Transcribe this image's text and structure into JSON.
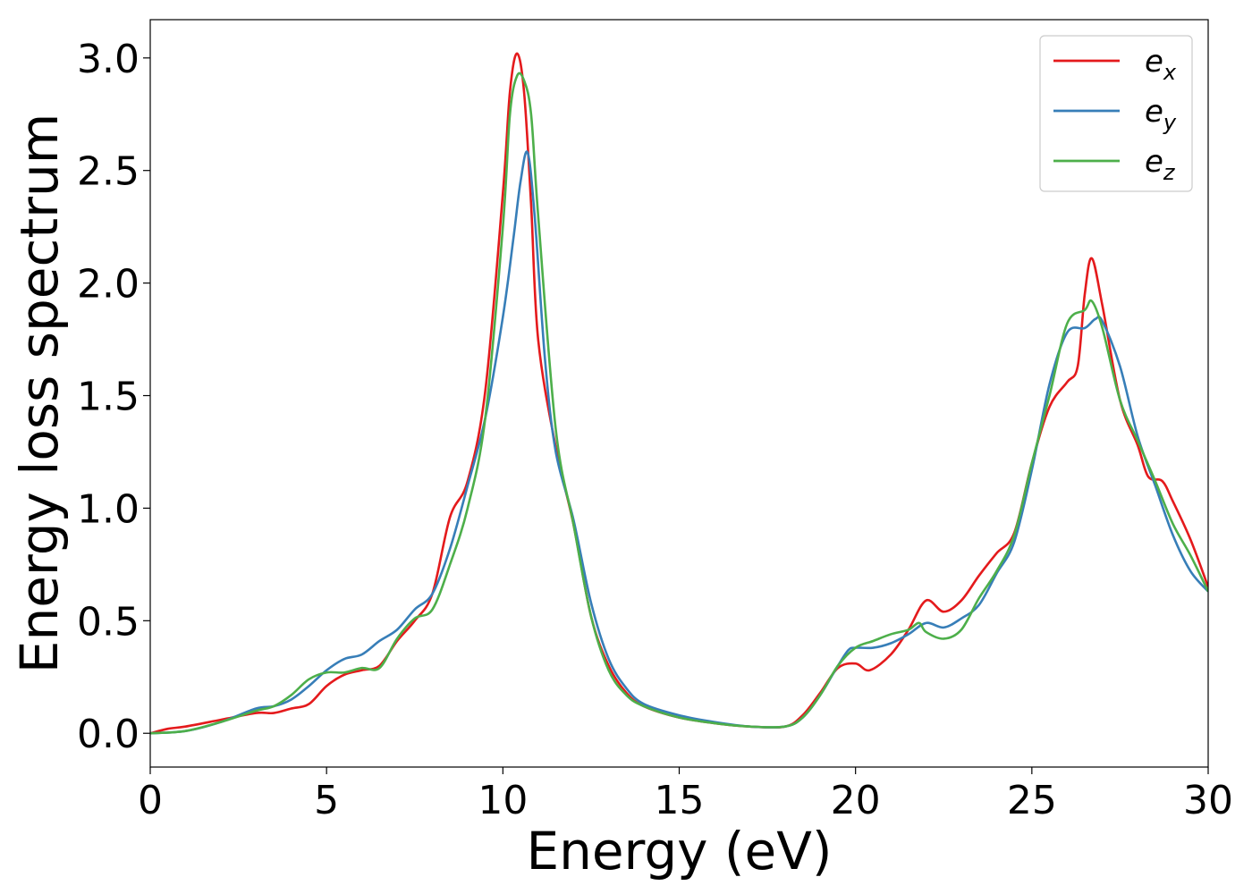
{
  "chart_data": {
    "type": "line",
    "title": "",
    "xlabel": "Energy (eV)",
    "ylabel": "Energy loss spectrum",
    "xlim": [
      0,
      30
    ],
    "ylim": [
      -0.15,
      3.17
    ],
    "xticks": [
      0,
      5,
      10,
      15,
      20,
      25,
      30
    ],
    "yticks": [
      0.0,
      0.5,
      1.0,
      1.5,
      2.0,
      2.5,
      3.0
    ],
    "xtick_labels": [
      "0",
      "5",
      "10",
      "15",
      "20",
      "25",
      "30"
    ],
    "ytick_labels": [
      "0.0",
      "0.5",
      "1.0",
      "1.5",
      "2.0",
      "2.5",
      "3.0"
    ],
    "grid": false,
    "legend_position": "top-right",
    "series": [
      {
        "name": "e",
        "subscript": "x",
        "color": "#e41a1c",
        "points": [
          [
            0,
            0
          ],
          [
            0.5,
            0.02
          ],
          [
            1,
            0.03
          ],
          [
            2,
            0.06
          ],
          [
            3,
            0.09
          ],
          [
            3.5,
            0.09
          ],
          [
            4,
            0.11
          ],
          [
            4.5,
            0.13
          ],
          [
            5,
            0.21
          ],
          [
            5.5,
            0.26
          ],
          [
            6,
            0.28
          ],
          [
            6.5,
            0.3
          ],
          [
            7,
            0.41
          ],
          [
            7.5,
            0.5
          ],
          [
            8,
            0.62
          ],
          [
            8.5,
            0.96
          ],
          [
            9,
            1.12
          ],
          [
            9.5,
            1.52
          ],
          [
            10,
            2.4
          ],
          [
            10.2,
            2.85
          ],
          [
            10.4,
            3.02
          ],
          [
            10.6,
            2.85
          ],
          [
            10.8,
            2.35
          ],
          [
            11,
            1.75
          ],
          [
            11.5,
            1.27
          ],
          [
            12,
            0.93
          ],
          [
            12.5,
            0.52
          ],
          [
            13,
            0.3
          ],
          [
            13.5,
            0.18
          ],
          [
            14,
            0.12
          ],
          [
            15,
            0.07
          ],
          [
            16,
            0.045
          ],
          [
            17,
            0.03
          ],
          [
            18,
            0.03
          ],
          [
            18.5,
            0.08
          ],
          [
            19,
            0.18
          ],
          [
            19.5,
            0.29
          ],
          [
            20,
            0.31
          ],
          [
            20.4,
            0.28
          ],
          [
            21,
            0.35
          ],
          [
            21.5,
            0.46
          ],
          [
            22,
            0.59
          ],
          [
            22.5,
            0.54
          ],
          [
            23,
            0.59
          ],
          [
            23.5,
            0.7
          ],
          [
            24,
            0.8
          ],
          [
            24.5,
            0.89
          ],
          [
            25,
            1.2
          ],
          [
            25.5,
            1.45
          ],
          [
            26,
            1.56
          ],
          [
            26.3,
            1.63
          ],
          [
            26.5,
            1.95
          ],
          [
            26.7,
            2.11
          ],
          [
            27,
            1.9
          ],
          [
            27.5,
            1.48
          ],
          [
            28,
            1.28
          ],
          [
            28.3,
            1.14
          ],
          [
            28.7,
            1.12
          ],
          [
            29,
            1.03
          ],
          [
            29.5,
            0.86
          ],
          [
            30,
            0.65
          ]
        ]
      },
      {
        "name": "e",
        "subscript": "y",
        "color": "#377eb8",
        "points": [
          [
            0,
            0
          ],
          [
            1,
            0.01
          ],
          [
            2,
            0.05
          ],
          [
            3,
            0.11
          ],
          [
            3.5,
            0.12
          ],
          [
            4,
            0.15
          ],
          [
            4.5,
            0.21
          ],
          [
            5,
            0.28
          ],
          [
            5.5,
            0.33
          ],
          [
            6,
            0.35
          ],
          [
            6.5,
            0.41
          ],
          [
            7,
            0.46
          ],
          [
            7.5,
            0.55
          ],
          [
            8,
            0.62
          ],
          [
            8.5,
            0.82
          ],
          [
            9,
            1.1
          ],
          [
            9.5,
            1.4
          ],
          [
            10,
            1.85
          ],
          [
            10.3,
            2.2
          ],
          [
            10.5,
            2.45
          ],
          [
            10.7,
            2.58
          ],
          [
            10.9,
            2.3
          ],
          [
            11.2,
            1.65
          ],
          [
            11.5,
            1.25
          ],
          [
            12,
            0.95
          ],
          [
            12.5,
            0.58
          ],
          [
            13,
            0.33
          ],
          [
            13.5,
            0.2
          ],
          [
            14,
            0.13
          ],
          [
            15,
            0.08
          ],
          [
            16,
            0.05
          ],
          [
            17,
            0.03
          ],
          [
            18,
            0.03
          ],
          [
            18.5,
            0.07
          ],
          [
            19,
            0.17
          ],
          [
            19.5,
            0.3
          ],
          [
            19.8,
            0.37
          ],
          [
            20,
            0.38
          ],
          [
            20.5,
            0.38
          ],
          [
            21,
            0.4
          ],
          [
            21.5,
            0.44
          ],
          [
            22,
            0.49
          ],
          [
            22.5,
            0.47
          ],
          [
            23,
            0.51
          ],
          [
            23.5,
            0.57
          ],
          [
            24,
            0.71
          ],
          [
            24.5,
            0.85
          ],
          [
            25,
            1.17
          ],
          [
            25.5,
            1.55
          ],
          [
            26,
            1.78
          ],
          [
            26.5,
            1.8
          ],
          [
            26.8,
            1.84
          ],
          [
            27,
            1.83
          ],
          [
            27.5,
            1.63
          ],
          [
            28,
            1.32
          ],
          [
            28.5,
            1.1
          ],
          [
            29,
            0.88
          ],
          [
            29.5,
            0.72
          ],
          [
            30,
            0.63
          ]
        ]
      },
      {
        "name": "e",
        "subscript": "z",
        "color": "#4daf4a",
        "points": [
          [
            0,
            0
          ],
          [
            1,
            0.01
          ],
          [
            2,
            0.05
          ],
          [
            3,
            0.1
          ],
          [
            3.5,
            0.12
          ],
          [
            4,
            0.17
          ],
          [
            4.5,
            0.24
          ],
          [
            5,
            0.27
          ],
          [
            5.5,
            0.27
          ],
          [
            6,
            0.29
          ],
          [
            6.5,
            0.29
          ],
          [
            7,
            0.42
          ],
          [
            7.5,
            0.51
          ],
          [
            8,
            0.55
          ],
          [
            8.5,
            0.75
          ],
          [
            9,
            1.0
          ],
          [
            9.5,
            1.4
          ],
          [
            10,
            2.25
          ],
          [
            10.2,
            2.75
          ],
          [
            10.4,
            2.92
          ],
          [
            10.6,
            2.9
          ],
          [
            10.8,
            2.75
          ],
          [
            11,
            2.3
          ],
          [
            11.5,
            1.35
          ],
          [
            12,
            0.93
          ],
          [
            12.5,
            0.52
          ],
          [
            13,
            0.28
          ],
          [
            13.5,
            0.17
          ],
          [
            14,
            0.12
          ],
          [
            15,
            0.07
          ],
          [
            16,
            0.045
          ],
          [
            17,
            0.03
          ],
          [
            18,
            0.03
          ],
          [
            18.5,
            0.07
          ],
          [
            19,
            0.17
          ],
          [
            19.5,
            0.3
          ],
          [
            20,
            0.38
          ],
          [
            20.5,
            0.41
          ],
          [
            21,
            0.44
          ],
          [
            21.5,
            0.46
          ],
          [
            21.8,
            0.49
          ],
          [
            22,
            0.45
          ],
          [
            22.5,
            0.42
          ],
          [
            23,
            0.46
          ],
          [
            23.5,
            0.6
          ],
          [
            24,
            0.72
          ],
          [
            24.5,
            0.88
          ],
          [
            25,
            1.2
          ],
          [
            25.5,
            1.5
          ],
          [
            26,
            1.82
          ],
          [
            26.5,
            1.88
          ],
          [
            26.7,
            1.92
          ],
          [
            27,
            1.8
          ],
          [
            27.5,
            1.48
          ],
          [
            28,
            1.3
          ],
          [
            28.5,
            1.12
          ],
          [
            29,
            0.93
          ],
          [
            29.5,
            0.79
          ],
          [
            30,
            0.63
          ]
        ]
      }
    ]
  }
}
